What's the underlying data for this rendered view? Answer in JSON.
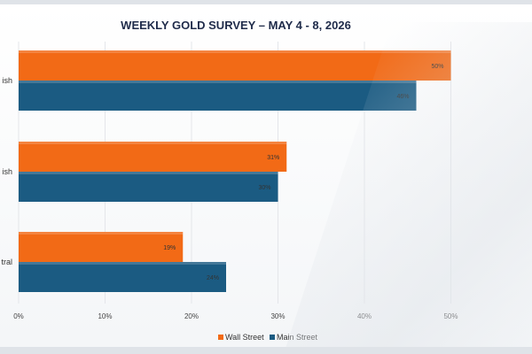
{
  "chart_data": {
    "type": "bar",
    "orientation": "horizontal",
    "title": "WEEKLY GOLD SURVEY – MAY 4 - 8, 2026",
    "categories": [
      "ish",
      "ish",
      "tral"
    ],
    "series": [
      {
        "name": "Wall Street",
        "values": [
          50,
          31,
          19
        ],
        "labels": [
          "50%",
          "31%",
          "19%"
        ],
        "color": "#f26a16"
      },
      {
        "name": "Main Street",
        "values": [
          46,
          30,
          24
        ],
        "labels": [
          "46%",
          "30%",
          "24%"
        ],
        "color": "#1b5b82"
      }
    ],
    "x_ticks": [
      "0%",
      "10%",
      "20%",
      "30%",
      "40%",
      "50%",
      "6"
    ],
    "xlim": [
      0,
      60
    ],
    "grid": true,
    "legend_position": "bottom"
  }
}
